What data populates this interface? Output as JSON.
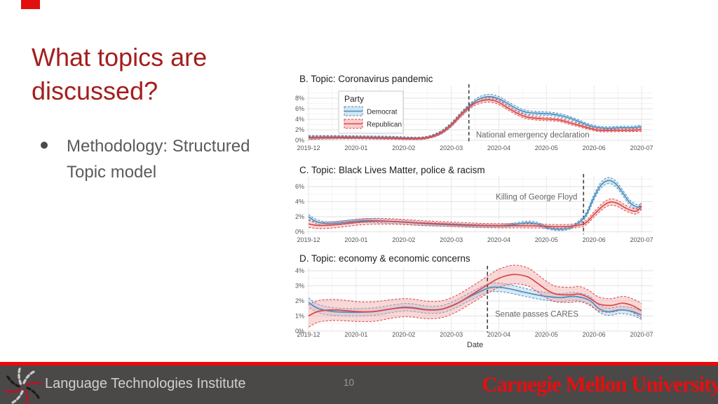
{
  "slide": {
    "corner_accent_color": "#e10f0f",
    "title_color": "#a51d1d",
    "title_lines": [
      "What topics are",
      "discussed?"
    ],
    "bullet_lines": [
      "Methodology: Structured",
      "Topic model"
    ]
  },
  "footer": {
    "org": "Language Technologies Institute",
    "page_number": "10",
    "university": "Carnegie Mellon University",
    "logo": "lti-pinwheel-logo",
    "accent_line_color": "#f50505",
    "bar_color": "#4b4848",
    "university_color": "#e60f0f"
  },
  "chart_data": [
    {
      "type": "line",
      "title": "B. Topic: Coronavirus pandemic",
      "xlabel": "",
      "x_ticks": [
        "2019-12",
        "2020-01",
        "2020-02",
        "2020-03",
        "2020-04",
        "2020-05",
        "2020-06",
        "2020-07"
      ],
      "y_tick_values": [
        0,
        2,
        4,
        6,
        8
      ],
      "y_tick_suffix": "%",
      "ylim": [
        0,
        10
      ],
      "grid": true,
      "legend": {
        "title": "Party",
        "position": "inside-top-left"
      },
      "annotation": {
        "text": "National emergency declaration",
        "event_x": 3.37,
        "text_x": 3.52,
        "text_y": 0.55,
        "anchor": "start"
      },
      "series": [
        {
          "name": "Democrat",
          "line_color": "#4a8fc2",
          "band_color": "#aecfe6",
          "points": [
            [
              0,
              0.55,
              0.35
            ],
            [
              0.3,
              0.6,
              0.3
            ],
            [
              0.7,
              0.6,
              0.28
            ],
            [
              1.0,
              0.6,
              0.25
            ],
            [
              1.4,
              0.55,
              0.25
            ],
            [
              1.8,
              0.5,
              0.25
            ],
            [
              2.1,
              0.4,
              0.22
            ],
            [
              2.4,
              0.42,
              0.22
            ],
            [
              2.6,
              0.8,
              0.25
            ],
            [
              2.8,
              1.6,
              0.3
            ],
            [
              3.0,
              3.0,
              0.35
            ],
            [
              3.2,
              4.9,
              0.4
            ],
            [
              3.42,
              6.8,
              0.4
            ],
            [
              3.6,
              7.9,
              0.42
            ],
            [
              3.8,
              8.3,
              0.45
            ],
            [
              4.0,
              7.9,
              0.42
            ],
            [
              4.2,
              6.9,
              0.4
            ],
            [
              4.4,
              5.9,
              0.38
            ],
            [
              4.6,
              5.3,
              0.35
            ],
            [
              4.9,
              5.1,
              0.33
            ],
            [
              5.1,
              5.0,
              0.32
            ],
            [
              5.3,
              4.7,
              0.32
            ],
            [
              5.5,
              4.2,
              0.3
            ],
            [
              5.7,
              3.5,
              0.3
            ],
            [
              5.9,
              2.8,
              0.28
            ],
            [
              6.1,
              2.4,
              0.26
            ],
            [
              6.3,
              2.3,
              0.26
            ],
            [
              6.6,
              2.4,
              0.26
            ],
            [
              6.8,
              2.4,
              0.28
            ],
            [
              7.0,
              2.6,
              0.3
            ]
          ]
        },
        {
          "name": "Republican",
          "line_color": "#df4545",
          "band_color": "#f2a8a8",
          "points": [
            [
              0,
              0.45,
              0.3
            ],
            [
              0.3,
              0.5,
              0.28
            ],
            [
              0.7,
              0.52,
              0.25
            ],
            [
              1.0,
              0.5,
              0.23
            ],
            [
              1.4,
              0.45,
              0.22
            ],
            [
              1.8,
              0.4,
              0.22
            ],
            [
              2.1,
              0.33,
              0.2
            ],
            [
              2.4,
              0.38,
              0.2
            ],
            [
              2.6,
              0.75,
              0.22
            ],
            [
              2.8,
              1.5,
              0.28
            ],
            [
              3.0,
              2.9,
              0.32
            ],
            [
              3.2,
              4.8,
              0.38
            ],
            [
              3.42,
              6.6,
              0.4
            ],
            [
              3.6,
              7.4,
              0.42
            ],
            [
              3.8,
              7.7,
              0.45
            ],
            [
              4.0,
              7.2,
              0.42
            ],
            [
              4.2,
              6.1,
              0.4
            ],
            [
              4.4,
              5.1,
              0.36
            ],
            [
              4.6,
              4.4,
              0.34
            ],
            [
              4.9,
              4.1,
              0.32
            ],
            [
              5.1,
              4.0,
              0.3
            ],
            [
              5.3,
              3.8,
              0.3
            ],
            [
              5.5,
              3.3,
              0.3
            ],
            [
              5.7,
              2.8,
              0.28
            ],
            [
              5.9,
              2.3,
              0.26
            ],
            [
              6.1,
              1.9,
              0.25
            ],
            [
              6.3,
              1.85,
              0.25
            ],
            [
              6.6,
              1.9,
              0.25
            ],
            [
              6.8,
              1.9,
              0.26
            ],
            [
              7.0,
              2.0,
              0.3
            ]
          ]
        }
      ]
    },
    {
      "type": "line",
      "title": "C. Topic: Black Lives Matter, police & racism",
      "xlabel": "",
      "x_ticks": [
        "2019-12",
        "2020-01",
        "2020-02",
        "2020-03",
        "2020-04",
        "2020-05",
        "2020-06",
        "2020-07"
      ],
      "y_tick_values": [
        0,
        2,
        4,
        6
      ],
      "y_tick_suffix": "%",
      "ylim": [
        0,
        7.4
      ],
      "grid": true,
      "annotation": {
        "text": "Killing of George Floyd",
        "event_x": 5.78,
        "text_x": 5.65,
        "text_y": 4.3,
        "anchor": "end"
      },
      "series": [
        {
          "name": "Democrat",
          "line_color": "#4a8fc2",
          "band_color": "#aecfe6",
          "points": [
            [
              0,
              2.0,
              0.3
            ],
            [
              0.15,
              1.4,
              0.28
            ],
            [
              0.35,
              1.1,
              0.25
            ],
            [
              0.6,
              1.15,
              0.25
            ],
            [
              0.9,
              1.35,
              0.25
            ],
            [
              1.2,
              1.5,
              0.25
            ],
            [
              1.5,
              1.45,
              0.25
            ],
            [
              1.8,
              1.35,
              0.24
            ],
            [
              2.1,
              1.25,
              0.23
            ],
            [
              2.5,
              1.05,
              0.22
            ],
            [
              2.9,
              0.95,
              0.2
            ],
            [
              3.3,
              0.85,
              0.2
            ],
            [
              3.7,
              0.8,
              0.2
            ],
            [
              4.0,
              0.8,
              0.2
            ],
            [
              4.3,
              0.95,
              0.2
            ],
            [
              4.6,
              1.2,
              0.22
            ],
            [
              4.8,
              1.05,
              0.22
            ],
            [
              5.0,
              0.6,
              0.2
            ],
            [
              5.2,
              0.35,
              0.18
            ],
            [
              5.45,
              0.45,
              0.18
            ],
            [
              5.65,
              1.1,
              0.22
            ],
            [
              5.83,
              2.2,
              0.28
            ],
            [
              6.0,
              4.6,
              0.35
            ],
            [
              6.15,
              6.2,
              0.38
            ],
            [
              6.3,
              6.8,
              0.4
            ],
            [
              6.45,
              6.4,
              0.38
            ],
            [
              6.6,
              5.2,
              0.36
            ],
            [
              6.75,
              3.9,
              0.34
            ],
            [
              6.9,
              3.3,
              0.32
            ],
            [
              7.0,
              3.4,
              0.35
            ]
          ]
        },
        {
          "name": "Republican",
          "line_color": "#df4545",
          "band_color": "#f2a8a8",
          "points": [
            [
              0,
              1.05,
              0.45
            ],
            [
              0.2,
              0.85,
              0.42
            ],
            [
              0.5,
              0.9,
              0.4
            ],
            [
              0.8,
              1.1,
              0.38
            ],
            [
              1.1,
              1.3,
              0.38
            ],
            [
              1.4,
              1.4,
              0.38
            ],
            [
              1.7,
              1.38,
              0.36
            ],
            [
              2.0,
              1.3,
              0.35
            ],
            [
              2.4,
              1.15,
              0.33
            ],
            [
              2.8,
              1.05,
              0.3
            ],
            [
              3.2,
              0.95,
              0.3
            ],
            [
              3.6,
              0.85,
              0.28
            ],
            [
              4.0,
              0.8,
              0.28
            ],
            [
              4.4,
              0.8,
              0.28
            ],
            [
              4.8,
              0.78,
              0.28
            ],
            [
              5.1,
              0.72,
              0.26
            ],
            [
              5.4,
              0.7,
              0.26
            ],
            [
              5.65,
              0.85,
              0.28
            ],
            [
              5.83,
              1.2,
              0.3
            ],
            [
              6.0,
              2.3,
              0.35
            ],
            [
              6.2,
              3.5,
              0.4
            ],
            [
              6.35,
              3.95,
              0.42
            ],
            [
              6.5,
              3.75,
              0.4
            ],
            [
              6.65,
              3.2,
              0.38
            ],
            [
              6.8,
              2.8,
              0.36
            ],
            [
              6.9,
              2.75,
              0.36
            ],
            [
              7.0,
              3.4,
              0.4
            ]
          ]
        }
      ]
    },
    {
      "type": "line",
      "title": "D. Topic: economy & economic concerns",
      "xlabel": "Date",
      "x_ticks": [
        "2019-12",
        "2020-01",
        "2020-02",
        "2020-03",
        "2020-04",
        "2020-05",
        "2020-06",
        "2020-07"
      ],
      "y_tick_values": [
        0,
        1,
        2,
        3,
        4
      ],
      "y_tick_suffix": "%",
      "ylim": [
        0,
        4.4
      ],
      "grid": true,
      "annotation": {
        "text": "Senate passes CARES",
        "event_x": 3.76,
        "text_x": 3.92,
        "text_y": 0.95,
        "anchor": "start"
      },
      "series": [
        {
          "name": "Democrat",
          "line_color": "#4a8fc2",
          "band_color": "#aecfe6",
          "points": [
            [
              0,
              1.9,
              0.3
            ],
            [
              0.2,
              1.5,
              0.28
            ],
            [
              0.5,
              1.3,
              0.26
            ],
            [
              0.8,
              1.25,
              0.25
            ],
            [
              1.1,
              1.25,
              0.25
            ],
            [
              1.4,
              1.3,
              0.25
            ],
            [
              1.7,
              1.45,
              0.25
            ],
            [
              2.0,
              1.58,
              0.25
            ],
            [
              2.2,
              1.55,
              0.25
            ],
            [
              2.5,
              1.42,
              0.24
            ],
            [
              2.8,
              1.45,
              0.24
            ],
            [
              3.1,
              1.8,
              0.25
            ],
            [
              3.4,
              2.3,
              0.26
            ],
            [
              3.78,
              2.85,
              0.28
            ],
            [
              4.0,
              2.9,
              0.28
            ],
            [
              4.2,
              2.82,
              0.28
            ],
            [
              4.5,
              2.6,
              0.27
            ],
            [
              4.8,
              2.4,
              0.26
            ],
            [
              5.0,
              2.3,
              0.26
            ],
            [
              5.3,
              2.22,
              0.26
            ],
            [
              5.6,
              2.3,
              0.26
            ],
            [
              5.9,
              2.05,
              0.26
            ],
            [
              6.1,
              1.5,
              0.25
            ],
            [
              6.3,
              1.28,
              0.24
            ],
            [
              6.55,
              1.4,
              0.24
            ],
            [
              6.8,
              1.3,
              0.25
            ],
            [
              7.0,
              1.05,
              0.28
            ]
          ]
        },
        {
          "name": "Republican",
          "line_color": "#df4545",
          "band_color": "#f2a8a8",
          "points": [
            [
              0,
              1.0,
              0.75
            ],
            [
              0.2,
              1.3,
              0.72
            ],
            [
              0.5,
              1.4,
              0.7
            ],
            [
              0.8,
              1.35,
              0.68
            ],
            [
              1.1,
              1.28,
              0.65
            ],
            [
              1.4,
              1.3,
              0.65
            ],
            [
              1.7,
              1.45,
              0.62
            ],
            [
              2.0,
              1.55,
              0.6
            ],
            [
              2.2,
              1.52,
              0.6
            ],
            [
              2.5,
              1.4,
              0.58
            ],
            [
              2.8,
              1.45,
              0.56
            ],
            [
              3.1,
              1.8,
              0.55
            ],
            [
              3.4,
              2.35,
              0.55
            ],
            [
              3.78,
              3.1,
              0.58
            ],
            [
              4.0,
              3.5,
              0.6
            ],
            [
              4.3,
              3.75,
              0.62
            ],
            [
              4.6,
              3.6,
              0.6
            ],
            [
              4.8,
              3.2,
              0.58
            ],
            [
              5.0,
              2.75,
              0.55
            ],
            [
              5.2,
              2.45,
              0.52
            ],
            [
              5.5,
              2.4,
              0.5
            ],
            [
              5.7,
              2.45,
              0.5
            ],
            [
              5.9,
              2.2,
              0.48
            ],
            [
              6.1,
              1.8,
              0.46
            ],
            [
              6.35,
              1.7,
              0.45
            ],
            [
              6.6,
              1.85,
              0.45
            ],
            [
              6.8,
              1.7,
              0.45
            ],
            [
              7.0,
              1.35,
              0.48
            ]
          ]
        }
      ]
    }
  ]
}
